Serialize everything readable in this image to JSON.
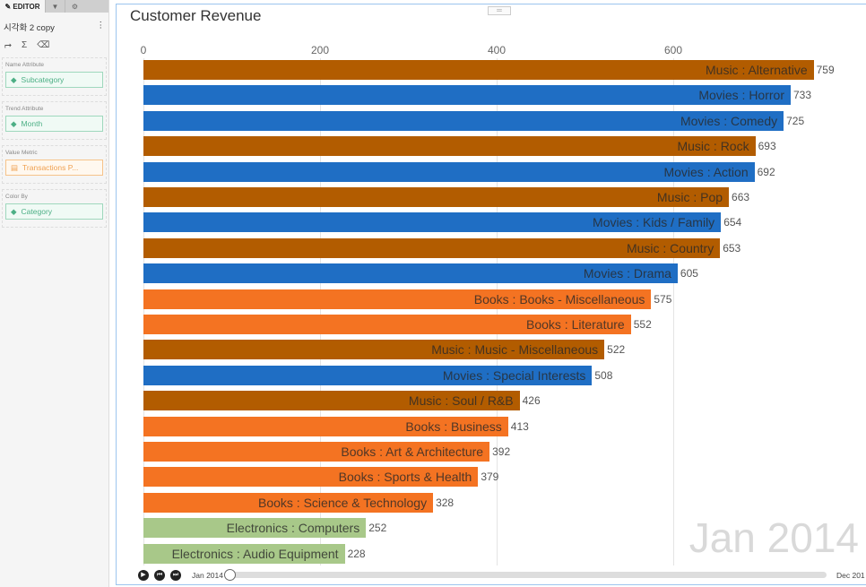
{
  "sidebar": {
    "tabs": [
      {
        "label": "EDITOR",
        "icon": "pencil-icon"
      },
      {
        "label": "",
        "icon": "filter-icon"
      },
      {
        "label": "",
        "icon": "gear-icon"
      }
    ],
    "viz_title": "시각화 2 copy",
    "menu": "⋮",
    "sections": [
      {
        "label": "Name Attribute",
        "value": "Subcategory",
        "type": "attribute"
      },
      {
        "label": "Trend Attribute",
        "value": "Month",
        "type": "attribute"
      },
      {
        "label": "Value Metric",
        "value": "Transactions P...",
        "type": "metric"
      },
      {
        "label": "Color By",
        "value": "Category",
        "type": "attribute"
      }
    ]
  },
  "chart_data": {
    "type": "bar",
    "title": "Customer Revenue",
    "orientation": "horizontal",
    "xlim": [
      0,
      770
    ],
    "xticks": [
      0,
      200,
      400,
      600
    ],
    "grid": true,
    "colors": {
      "Music": "#b25c00",
      "Movies": "#1f6ec4",
      "Books": "#f47322",
      "Electronics": "#a8c889"
    },
    "categories": [
      "Music : Alternative",
      "Movies : Horror",
      "Movies : Comedy",
      "Music : Rock",
      "Movies : Action",
      "Music : Pop",
      "Movies : Kids / Family",
      "Music : Country",
      "Movies : Drama",
      "Books : Books - Miscellaneous",
      "Books : Literature",
      "Music : Music - Miscellaneous",
      "Movies : Special Interests",
      "Music : Soul / R&B",
      "Books : Business",
      "Books : Art & Architecture",
      "Books : Sports & Health",
      "Books : Science & Technology",
      "Electronics : Computers",
      "Electronics : Audio Equipment"
    ],
    "values": [
      759,
      733,
      725,
      693,
      692,
      663,
      654,
      653,
      605,
      575,
      552,
      522,
      508,
      426,
      413,
      392,
      379,
      328,
      252,
      228
    ],
    "period": "Jan 2014"
  },
  "player": {
    "start": "Jan 2014",
    "end": "Dec 201",
    "progress": 0
  }
}
